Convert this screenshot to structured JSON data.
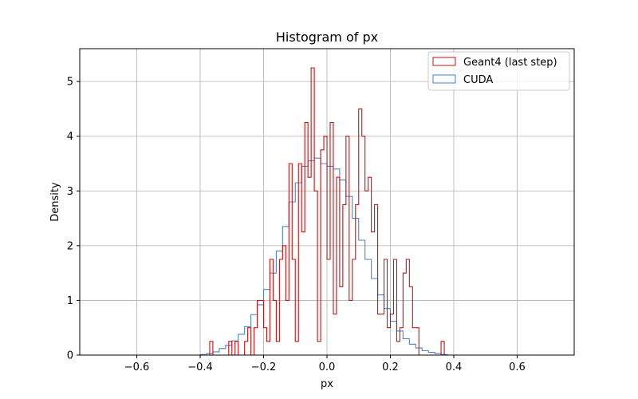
{
  "chart_data": {
    "type": "histogram",
    "title": "Histogram of px",
    "xlabel": "px",
    "ylabel": "Density",
    "xlim": [
      -0.78,
      0.78
    ],
    "ylim": [
      0,
      5.6
    ],
    "xticks": [
      -0.6,
      -0.4,
      -0.2,
      0.0,
      0.2,
      0.4,
      0.6
    ],
    "yticks": [
      0,
      1,
      2,
      3,
      4,
      5
    ],
    "grid": true,
    "legend_position": "top-right",
    "series": [
      {
        "name": "Geant4 (last step)",
        "color": "#cc1111",
        "bin_edges": [
          -0.72,
          -0.71,
          -0.7,
          -0.69,
          -0.68,
          -0.67,
          -0.66,
          -0.65,
          -0.64,
          -0.63,
          -0.62,
          -0.61,
          -0.6,
          -0.59,
          -0.58,
          -0.57,
          -0.56,
          -0.55,
          -0.54,
          -0.53,
          -0.52,
          -0.51,
          -0.5,
          -0.49,
          -0.48,
          -0.47,
          -0.46,
          -0.45,
          -0.44,
          -0.43,
          -0.42,
          -0.41,
          -0.4,
          -0.39,
          -0.38,
          -0.37,
          -0.36,
          -0.35,
          -0.34,
          -0.33,
          -0.32,
          -0.31,
          -0.3,
          -0.29,
          -0.28,
          -0.27,
          -0.26,
          -0.25,
          -0.24,
          -0.23,
          -0.22,
          -0.21,
          -0.2,
          -0.19,
          -0.18,
          -0.17,
          -0.16,
          -0.15,
          -0.14,
          -0.13,
          -0.12,
          -0.11,
          -0.1,
          -0.09,
          -0.08,
          -0.07,
          -0.06,
          -0.05,
          -0.04,
          -0.03,
          -0.02,
          -0.01,
          0.0,
          0.01,
          0.02,
          0.03,
          0.04,
          0.05,
          0.06,
          0.07,
          0.08,
          0.09,
          0.1,
          0.11,
          0.12,
          0.13,
          0.14,
          0.15,
          0.16,
          0.17,
          0.18,
          0.19,
          0.2,
          0.21,
          0.22,
          0.23,
          0.24,
          0.25,
          0.26,
          0.27,
          0.28,
          0.29,
          0.3,
          0.31,
          0.32,
          0.33,
          0.34,
          0.35,
          0.36,
          0.37,
          0.38,
          0.39,
          0.4,
          0.41,
          0.42,
          0.43,
          0.44,
          0.45,
          0.46,
          0.47,
          0.48,
          0.49,
          0.5,
          0.51,
          0.52,
          0.53,
          0.54,
          0.55,
          0.56,
          0.57,
          0.58,
          0.59,
          0.6,
          0.61,
          0.62,
          0.63,
          0.64,
          0.65,
          0.66,
          0.67,
          0.68,
          0.69,
          0.7,
          0.71,
          0.72
        ],
        "densities": [
          0,
          0,
          0,
          0,
          0,
          0,
          0,
          0,
          0,
          0,
          0,
          0,
          0,
          0,
          0,
          0,
          0,
          0,
          0,
          0,
          0,
          0,
          0,
          0,
          0,
          0,
          0,
          0,
          0,
          0,
          0,
          0,
          0,
          0,
          0,
          0.25,
          0,
          0,
          0,
          0,
          0,
          0.25,
          0,
          0.25,
          0,
          0,
          0.25,
          0.5,
          0,
          0.5,
          1.0,
          1.0,
          0.5,
          0.25,
          1.75,
          1.0,
          0.25,
          1.75,
          2.0,
          1.0,
          3.5,
          1.75,
          0.25,
          3.5,
          2.25,
          4.25,
          3.25,
          5.25,
          3.0,
          0.25,
          3.75,
          4.0,
          1.75,
          4.25,
          0.75,
          3.25,
          1.25,
          2.75,
          4.0,
          1.0,
          1.75,
          2.75,
          4.5,
          4.0,
          3.0,
          3.25,
          2.25,
          2.75,
          0.75,
          0.75,
          1.75,
          0.5,
          0.75,
          1.75,
          0.25,
          0.5,
          1.5,
          1.75,
          1.25,
          0.5,
          0.5,
          0,
          0,
          0,
          0,
          0,
          0,
          0,
          0.25,
          0,
          0,
          0,
          0,
          0,
          0,
          0,
          0,
          0,
          0,
          0,
          0,
          0,
          0,
          0,
          0,
          0,
          0,
          0,
          0,
          0,
          0,
          0,
          0,
          0,
          0,
          0,
          0,
          0,
          0,
          0,
          0,
          0,
          0,
          0,
          0,
          0,
          0
        ]
      },
      {
        "name": "CUDA",
        "color": "#4a86cc",
        "bin_edges": [
          -0.4,
          -0.38,
          -0.36,
          -0.34,
          -0.32,
          -0.3,
          -0.28,
          -0.26,
          -0.24,
          -0.22,
          -0.2,
          -0.18,
          -0.16,
          -0.14,
          -0.12,
          -0.1,
          -0.08,
          -0.06,
          -0.04,
          -0.02,
          0.0,
          0.02,
          0.04,
          0.06,
          0.08,
          0.1,
          0.12,
          0.14,
          0.16,
          0.18,
          0.2,
          0.22,
          0.24,
          0.26,
          0.28,
          0.3,
          0.32,
          0.34,
          0.36,
          0.38,
          0.4
        ],
        "densities": [
          0.01,
          0.03,
          0.06,
          0.12,
          0.18,
          0.26,
          0.38,
          0.52,
          0.74,
          0.92,
          1.2,
          1.5,
          1.9,
          2.35,
          2.8,
          3.15,
          3.45,
          3.55,
          3.6,
          3.5,
          3.45,
          3.4,
          3.2,
          2.9,
          2.5,
          2.1,
          1.75,
          1.4,
          1.1,
          0.85,
          0.62,
          0.44,
          0.3,
          0.2,
          0.13,
          0.08,
          0.05,
          0.03,
          0.01,
          0.0
        ]
      }
    ]
  }
}
